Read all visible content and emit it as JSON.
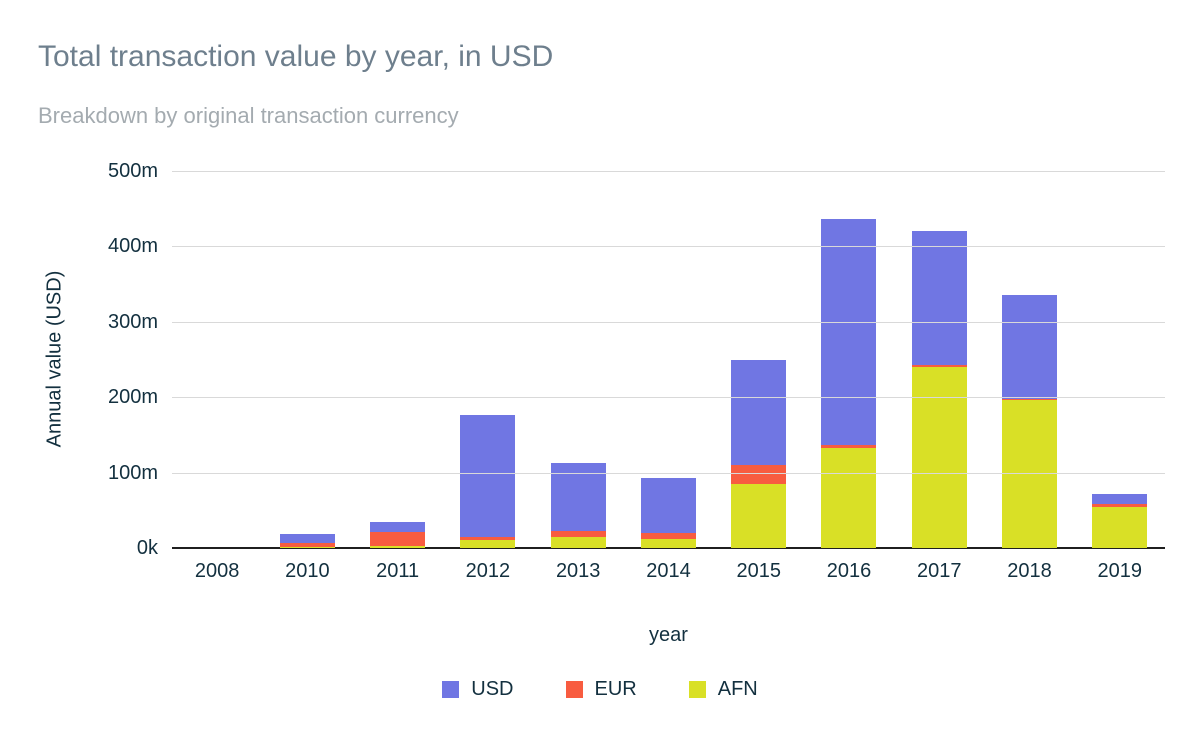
{
  "chart_data": {
    "type": "bar",
    "stacked": true,
    "title": "Total transaction value by year, in USD",
    "subtitle": "Breakdown by original transaction currency",
    "xlabel": "year",
    "ylabel": "Annual value (USD)",
    "unit": "millions of USD",
    "categories": [
      "2008",
      "2010",
      "2011",
      "2012",
      "2013",
      "2014",
      "2015",
      "2016",
      "2017",
      "2018",
      "2019"
    ],
    "series": [
      {
        "name": "AFN",
        "color": "#d9e026",
        "values": [
          0,
          1,
          3,
          10,
          15,
          12,
          85,
          133,
          240,
          196,
          55
        ]
      },
      {
        "name": "EUR",
        "color": "#f85c40",
        "values": [
          0,
          5,
          18,
          5,
          7,
          8,
          25,
          4,
          3,
          1,
          3
        ]
      },
      {
        "name": "USD",
        "color": "#7076e3",
        "values": [
          0,
          12,
          13,
          162,
          91,
          73,
          140,
          300,
          178,
          138,
          13
        ]
      }
    ],
    "stack_order_bottom_to_top": [
      "AFN",
      "EUR",
      "USD"
    ],
    "y_ticks": [
      "500m",
      "400m",
      "300m",
      "200m",
      "100m",
      "0k"
    ],
    "y_tick_values": [
      500,
      400,
      300,
      200,
      100,
      0
    ],
    "ylim": [
      0,
      500
    ],
    "grid": "horizontal",
    "legend": [
      "USD",
      "EUR",
      "AFN"
    ],
    "legend_position": "bottom",
    "colors": {
      "title_text": "#6e7f8d",
      "subtitle_text": "#a4abb0",
      "axis_text": "#13303f",
      "gridline": "#d9d9d9",
      "axis_line": "#1f1f1f",
      "background": "#ffffff"
    }
  }
}
